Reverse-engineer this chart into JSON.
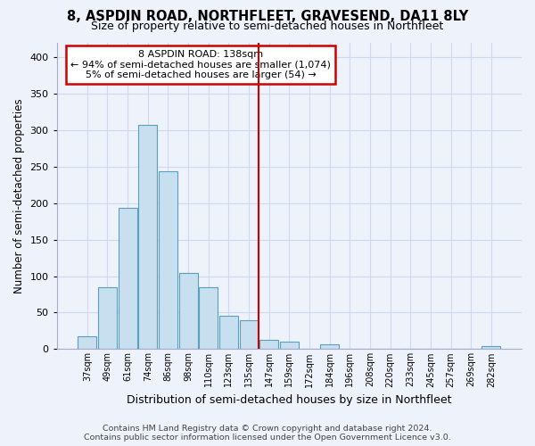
{
  "title": "8, ASPDIN ROAD, NORTHFLEET, GRAVESEND, DA11 8LY",
  "subtitle": "Size of property relative to semi-detached houses in Northfleet",
  "xlabel": "Distribution of semi-detached houses by size in Northfleet",
  "ylabel": "Number of semi-detached properties",
  "bar_labels": [
    "37sqm",
    "49sqm",
    "61sqm",
    "74sqm",
    "86sqm",
    "98sqm",
    "110sqm",
    "123sqm",
    "135sqm",
    "147sqm",
    "159sqm",
    "172sqm",
    "184sqm",
    "196sqm",
    "208sqm",
    "220sqm",
    "233sqm",
    "245sqm",
    "257sqm",
    "269sqm",
    "282sqm"
  ],
  "bar_values": [
    18,
    85,
    193,
    307,
    243,
    104,
    85,
    46,
    39,
    13,
    10,
    0,
    6,
    0,
    0,
    0,
    0,
    0,
    0,
    0,
    4
  ],
  "bar_color": "#c8dff0",
  "bar_edge_color": "#5a9fc0",
  "vline_x_index": 8,
  "vline_color": "#cc0000",
  "annotation_title": "8 ASPDIN ROAD: 138sqm",
  "annotation_line1": "← 94% of semi-detached houses are smaller (1,074)",
  "annotation_line2": "5% of semi-detached houses are larger (54) →",
  "annotation_box_facecolor": "#ffffff",
  "annotation_box_edgecolor": "#cc0000",
  "footer_line1": "Contains HM Land Registry data © Crown copyright and database right 2024.",
  "footer_line2": "Contains public sector information licensed under the Open Government Licence v3.0.",
  "ylim": [
    0,
    420
  ],
  "yticks": [
    0,
    50,
    100,
    150,
    200,
    250,
    300,
    350,
    400
  ],
  "background_color": "#eef2fb",
  "grid_color": "#d0d8ee",
  "title_fontsize": 10.5,
  "subtitle_fontsize": 9,
  "ylabel_fontsize": 8.5,
  "xlabel_fontsize": 9,
  "tick_fontsize": 7,
  "annotation_title_fontsize": 8.5,
  "annotation_body_fontsize": 8,
  "footer_fontsize": 6.8
}
